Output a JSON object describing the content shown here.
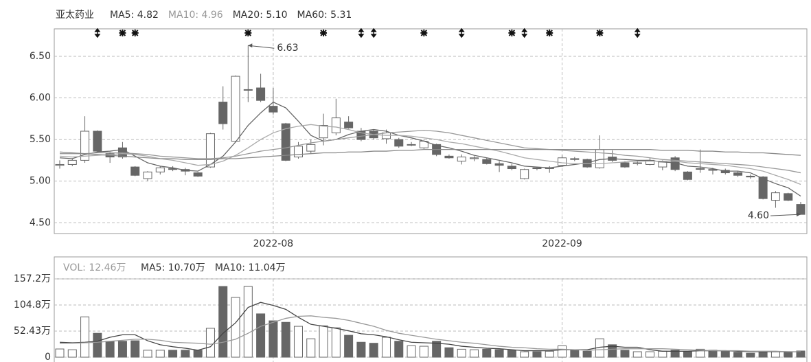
{
  "chart_data": [
    {
      "type": "candlestick",
      "title": "亚太药业",
      "categories": [
        null,
        null,
        null,
        null,
        null,
        null,
        null,
        null,
        null,
        null,
        null,
        null,
        null,
        null,
        null,
        null,
        null,
        "2022-08",
        null,
        null,
        null,
        null,
        null,
        null,
        null,
        null,
        null,
        null,
        null,
        null,
        null,
        null,
        null,
        null,
        null,
        null,
        null,
        null,
        null,
        null,
        "2022-09",
        null,
        null,
        null,
        null,
        null,
        null,
        null,
        null,
        null,
        null,
        null,
        null,
        null,
        null,
        null,
        null,
        null,
        null,
        null
      ],
      "open": [
        5.19,
        5.2,
        5.25,
        5.6,
        5.33,
        5.4,
        5.17,
        5.03,
        5.11,
        5.15,
        5.14,
        5.1,
        5.17,
        5.95,
        5.48,
        6.1,
        6.12,
        5.9,
        5.69,
        5.29,
        5.36,
        5.52,
        5.58,
        5.71,
        5.6,
        5.6,
        5.51,
        5.5,
        5.44,
        5.4,
        5.44,
        5.3,
        5.24,
        5.27,
        5.26,
        5.21,
        5.18,
        5.03,
        5.16,
        5.15,
        5.19,
        5.27,
        5.26,
        5.16,
        5.29,
        5.22,
        5.21,
        5.2,
        5.17,
        5.28,
        5.11,
        5.15,
        5.14,
        5.13,
        5.1,
        5.06,
        5.05,
        4.77,
        4.85,
        4.72
      ],
      "high": [
        5.25,
        5.27,
        5.78,
        5.61,
        5.35,
        5.47,
        5.18,
        5.12,
        5.18,
        5.18,
        5.16,
        5.11,
        5.58,
        6.14,
        6.27,
        6.63,
        6.29,
        6.12,
        5.7,
        5.47,
        5.5,
        5.81,
        5.99,
        5.78,
        5.64,
        5.62,
        5.62,
        5.52,
        5.47,
        5.5,
        5.45,
        5.32,
        5.32,
        5.3,
        5.28,
        5.24,
        5.21,
        5.15,
        5.17,
        5.18,
        5.31,
        5.29,
        5.27,
        5.55,
        5.37,
        5.24,
        5.25,
        5.28,
        5.25,
        5.3,
        5.12,
        5.38,
        5.16,
        5.15,
        5.12,
        5.08,
        5.06,
        4.88,
        4.86,
        4.75
      ],
      "low": [
        5.15,
        5.18,
        5.22,
        5.34,
        5.22,
        5.27,
        5.06,
        5.0,
        5.08,
        5.12,
        5.07,
        5.05,
        5.16,
        5.62,
        5.47,
        5.95,
        5.95,
        5.8,
        5.24,
        5.27,
        5.33,
        5.43,
        5.55,
        5.63,
        5.48,
        5.5,
        5.45,
        5.4,
        5.42,
        5.38,
        5.3,
        5.27,
        5.2,
        5.24,
        5.2,
        5.11,
        5.13,
        5.02,
        5.13,
        5.1,
        5.17,
        5.24,
        5.16,
        5.15,
        5.23,
        5.16,
        5.19,
        5.19,
        5.13,
        5.12,
        5.01,
        5.1,
        5.08,
        5.08,
        5.05,
        5.03,
        4.78,
        4.68,
        4.76,
        4.6
      ],
      "close": [
        5.2,
        5.25,
        5.6,
        5.36,
        5.29,
        5.29,
        5.07,
        5.11,
        5.16,
        5.14,
        5.12,
        5.06,
        5.57,
        5.69,
        6.26,
        6.1,
        5.97,
        5.83,
        5.25,
        5.42,
        5.44,
        5.67,
        5.76,
        5.64,
        5.5,
        5.52,
        5.58,
        5.42,
        5.44,
        5.48,
        5.32,
        5.28,
        5.29,
        5.28,
        5.21,
        5.19,
        5.15,
        5.14,
        5.15,
        5.16,
        5.28,
        5.26,
        5.17,
        5.38,
        5.25,
        5.17,
        5.22,
        5.25,
        5.23,
        5.14,
        5.02,
        5.15,
        5.13,
        5.1,
        5.07,
        5.05,
        4.79,
        4.86,
        4.77,
        4.6
      ],
      "up_color": "#ffffff",
      "down_color": "#666666",
      "edge_color": "#666666",
      "series": [
        {
          "name": "MA5: 4.82",
          "color": "#666666",
          "values": [
            5.28,
            5.27,
            5.32,
            5.35,
            5.36,
            5.38,
            5.3,
            5.22,
            5.18,
            5.16,
            5.13,
            5.12,
            5.2,
            5.3,
            5.47,
            5.67,
            5.82,
            5.95,
            5.88,
            5.72,
            5.55,
            5.48,
            5.5,
            5.56,
            5.6,
            5.62,
            5.6,
            5.55,
            5.52,
            5.48,
            5.43,
            5.4,
            5.36,
            5.31,
            5.28,
            5.25,
            5.22,
            5.18,
            5.17,
            5.16,
            5.18,
            5.2,
            5.22,
            5.26,
            5.27,
            5.26,
            5.25,
            5.25,
            5.23,
            5.22,
            5.18,
            5.17,
            5.15,
            5.12,
            5.12,
            5.1,
            5.03,
            4.97,
            4.92,
            4.82
          ]
        },
        {
          "name": "MA10: 4.96",
          "color": "#aaaaaa",
          "values": [
            5.3,
            5.29,
            5.3,
            5.31,
            5.32,
            5.33,
            5.32,
            5.3,
            5.27,
            5.25,
            5.22,
            5.19,
            5.2,
            5.24,
            5.31,
            5.4,
            5.5,
            5.58,
            5.63,
            5.66,
            5.68,
            5.66,
            5.65,
            5.62,
            5.58,
            5.56,
            5.55,
            5.55,
            5.54,
            5.52,
            5.5,
            5.47,
            5.45,
            5.42,
            5.39,
            5.36,
            5.32,
            5.28,
            5.26,
            5.24,
            5.22,
            5.21,
            5.21,
            5.21,
            5.22,
            5.23,
            5.24,
            5.24,
            5.24,
            5.24,
            5.22,
            5.21,
            5.2,
            5.19,
            5.17,
            5.15,
            5.12,
            5.07,
            5.02,
            4.96
          ]
        },
        {
          "name": "MA20: 5.10",
          "color": "#999999",
          "values": [
            5.33,
            5.33,
            5.33,
            5.34,
            5.34,
            5.34,
            5.33,
            5.32,
            5.3,
            5.29,
            5.28,
            5.27,
            5.27,
            5.28,
            5.3,
            5.33,
            5.36,
            5.38,
            5.4,
            5.43,
            5.46,
            5.48,
            5.5,
            5.52,
            5.54,
            5.56,
            5.58,
            5.59,
            5.6,
            5.61,
            5.6,
            5.58,
            5.55,
            5.52,
            5.49,
            5.46,
            5.43,
            5.4,
            5.39,
            5.38,
            5.37,
            5.36,
            5.35,
            5.34,
            5.33,
            5.31,
            5.3,
            5.28,
            5.26,
            5.25,
            5.24,
            5.23,
            5.22,
            5.21,
            5.2,
            5.19,
            5.17,
            5.15,
            5.13,
            5.1
          ]
        },
        {
          "name": "MA60: 5.31",
          "color": "#888888",
          "values": [
            5.35,
            5.34,
            5.33,
            5.32,
            5.31,
            5.3,
            5.29,
            5.28,
            5.27,
            5.27,
            5.26,
            5.26,
            5.26,
            5.27,
            5.27,
            5.28,
            5.29,
            5.3,
            5.31,
            5.32,
            5.33,
            5.34,
            5.34,
            5.35,
            5.35,
            5.36,
            5.36,
            5.37,
            5.37,
            5.38,
            5.38,
            5.38,
            5.38,
            5.38,
            5.38,
            5.38,
            5.38,
            5.38,
            5.38,
            5.38,
            5.38,
            5.38,
            5.38,
            5.38,
            5.38,
            5.38,
            5.38,
            5.38,
            5.37,
            5.37,
            5.37,
            5.36,
            5.36,
            5.35,
            5.35,
            5.34,
            5.34,
            5.33,
            5.32,
            5.31
          ]
        }
      ],
      "ylim": [
        4.37,
        6.83
      ],
      "yticks": [
        {
          "value": 4.5,
          "label": "4.50"
        },
        {
          "value": 5,
          "label": "5.00"
        },
        {
          "value": 5.5,
          "label": "5.50"
        },
        {
          "value": 6,
          "label": "6.00"
        },
        {
          "value": 6.5,
          "label": "6.50"
        }
      ],
      "grid": true,
      "annotations": [
        6.63,
        {
          "value": 4.6,
          "label": "4.60"
        }
      ]
    },
    {
      "type": "bar",
      "legend_title": "VOL: 12.46万",
      "values": [
        16.5,
        15,
        81,
        48,
        32,
        32,
        33,
        14,
        14,
        14,
        14,
        14,
        58,
        142,
        120,
        142,
        87,
        73,
        70,
        62,
        37,
        63,
        59,
        44,
        30,
        28,
        40,
        32,
        23,
        22,
        32,
        19,
        16,
        15,
        16,
        15,
        14,
        11,
        11,
        12,
        23,
        14,
        12,
        37,
        25,
        14,
        11,
        11,
        12,
        14,
        11,
        16,
        14,
        12,
        10,
        8,
        11,
        11,
        11,
        12.46
      ],
      "series": [
        {
          "name": "MA5: 10.70万",
          "color": "#444444",
          "values": [
            30,
            29,
            30,
            32,
            40,
            45,
            45,
            33,
            25,
            21,
            18,
            14,
            21,
            48,
            69,
            100,
            110,
            104,
            96,
            80,
            66,
            62,
            58,
            53,
            47,
            45,
            41,
            35,
            30,
            29,
            28,
            26,
            22,
            20,
            18,
            17,
            15,
            13,
            13,
            13,
            15,
            15,
            15,
            20,
            22,
            20,
            20,
            15,
            12,
            12,
            12,
            13,
            13,
            13,
            12,
            11,
            11,
            11,
            11,
            10.7
          ]
        },
        {
          "name": "MA10: 11.04万",
          "color": "#999999",
          "values": [
            28,
            28,
            29,
            30,
            32,
            34,
            36,
            36,
            34,
            30,
            29,
            28,
            26,
            30,
            36,
            48,
            62,
            70,
            78,
            82,
            83,
            80,
            78,
            74,
            68,
            62,
            54,
            48,
            44,
            40,
            36,
            33,
            30,
            28,
            25,
            22,
            20,
            19,
            17,
            16,
            16,
            15,
            14,
            15,
            16,
            17,
            17,
            17,
            17,
            16,
            15,
            14,
            13,
            13,
            13,
            12,
            12,
            12,
            11,
            11.04
          ]
        }
      ],
      "ylim": [
        0,
        157.2
      ],
      "yticks": [
        0,
        {
          "value": 52.43,
          "label": "52.43万"
        },
        {
          "value": 104.8,
          "label": "104.8万"
        },
        {
          "value": 157.2,
          "label": "157.2万"
        }
      ],
      "grid": true
    }
  ]
}
